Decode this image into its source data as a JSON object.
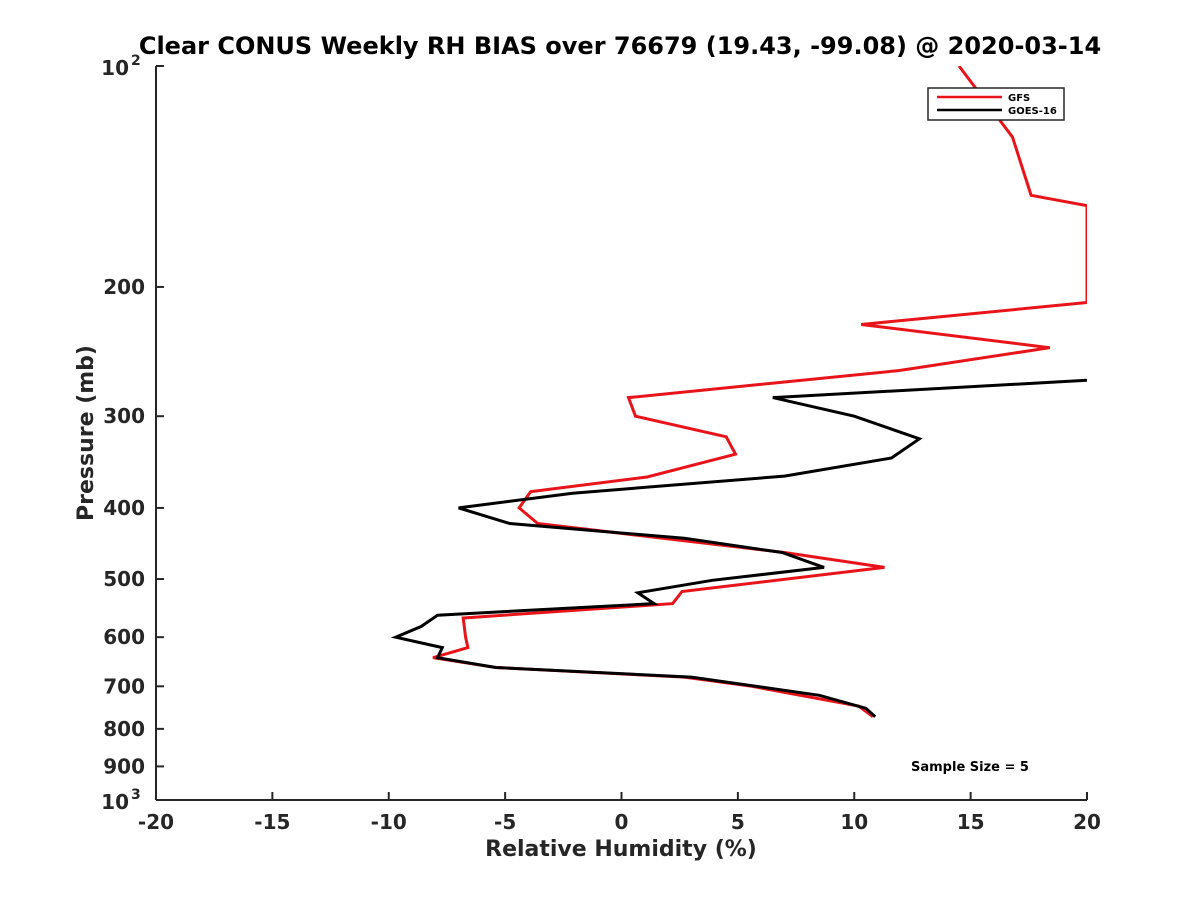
{
  "chart_data": {
    "type": "line",
    "title": "Clear CONUS Weekly RH BIAS over 76679 (19.43, -99.08) @ 2020-03-14",
    "xlabel": "Relative Humidity (%)",
    "ylabel": "Pressure (mb)",
    "xlim": [
      -20,
      20
    ],
    "ylim": [
      100,
      1000
    ],
    "y_scale": "log",
    "y_reversed": true,
    "grid": false,
    "legend_position": "top-right",
    "x_ticks": [
      "-20",
      "-15",
      "-10",
      "-5",
      "0",
      "5",
      "10",
      "15",
      "20"
    ],
    "y_ticks": [
      {
        "value": 100,
        "base": "10",
        "exp": "2"
      },
      {
        "value": 200,
        "label": "200"
      },
      {
        "value": 300,
        "label": "300"
      },
      {
        "value": 400,
        "label": "400"
      },
      {
        "value": 500,
        "label": "500"
      },
      {
        "value": 600,
        "label": "600"
      },
      {
        "value": 700,
        "label": "700"
      },
      {
        "value": 800,
        "label": "800"
      },
      {
        "value": 900,
        "label": "900"
      },
      {
        "value": 1000,
        "base": "10",
        "exp": "3"
      }
    ],
    "series": [
      {
        "name": "GFS",
        "color": "#e8141a",
        "points": [
          [
            14.5,
            100
          ],
          [
            16.8,
            125
          ],
          [
            17.6,
            150
          ],
          [
            20.0,
            155
          ],
          [
            20.0,
            210
          ],
          [
            10.3,
            225
          ],
          [
            18.4,
            242
          ],
          [
            11.9,
            260
          ],
          [
            0.3,
            283
          ],
          [
            0.6,
            300
          ],
          [
            4.5,
            320
          ],
          [
            4.9,
            338
          ],
          [
            1.1,
            363
          ],
          [
            -3.9,
            380
          ],
          [
            -4.4,
            400
          ],
          [
            -3.6,
            420
          ],
          [
            7.0,
            460
          ],
          [
            11.3,
            482
          ],
          [
            2.6,
            520
          ],
          [
            2.2,
            540
          ],
          [
            -6.8,
            565
          ],
          [
            -6.7,
            600
          ],
          [
            -6.6,
            620
          ],
          [
            -8.1,
            640
          ],
          [
            -5.4,
            660
          ],
          [
            2.7,
            680
          ],
          [
            5.6,
            700
          ],
          [
            10.2,
            745
          ],
          [
            10.8,
            770
          ]
        ]
      },
      {
        "name": "GOES-16",
        "color": "#000000",
        "points": [
          [
            20.0,
            268
          ],
          [
            6.5,
            283
          ],
          [
            10.0,
            300
          ],
          [
            12.8,
            322
          ],
          [
            11.6,
            342
          ],
          [
            7.0,
            362
          ],
          [
            -2.1,
            382
          ],
          [
            -7.0,
            400
          ],
          [
            -4.8,
            420
          ],
          [
            2.7,
            440
          ],
          [
            6.9,
            460
          ],
          [
            8.7,
            482
          ],
          [
            3.9,
            502
          ],
          [
            0.7,
            522
          ],
          [
            1.4,
            540
          ],
          [
            -7.9,
            560
          ],
          [
            -8.6,
            580
          ],
          [
            -9.7,
            600
          ],
          [
            -7.7,
            620
          ],
          [
            -7.9,
            640
          ],
          [
            -5.4,
            660
          ],
          [
            3.0,
            680
          ],
          [
            8.5,
            720
          ],
          [
            10.5,
            750
          ],
          [
            10.9,
            770
          ]
        ]
      }
    ],
    "annotation": "Sample Size = 5"
  }
}
